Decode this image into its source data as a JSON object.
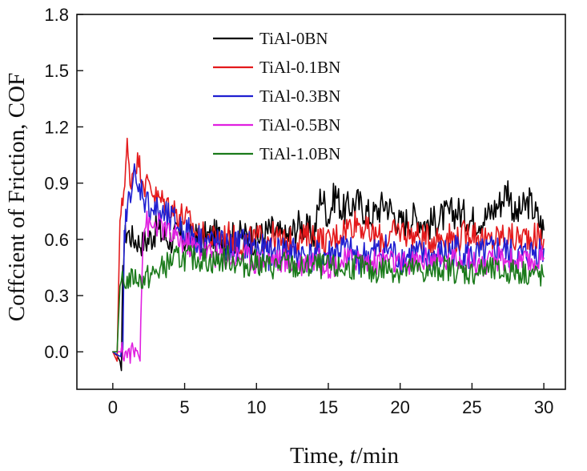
{
  "chart_data": {
    "type": "line",
    "title": "",
    "xlabel_prefix": "Time, ",
    "xlabel_var": "t",
    "xlabel_suffix": "/min",
    "ylabel": "Coffcient of Friction, COF",
    "xlim": [
      -2.5,
      31.5
    ],
    "ylim": [
      -0.2,
      1.8
    ],
    "xticks": [
      0,
      5,
      10,
      15,
      20,
      25,
      30
    ],
    "yticks": [
      0.0,
      0.3,
      0.6,
      0.9,
      1.2,
      1.5,
      1.8
    ],
    "xtick_labels": [
      "0",
      "5",
      "10",
      "15",
      "20",
      "25",
      "30"
    ],
    "ytick_labels": [
      "0.0",
      "0.3",
      "0.6",
      "0.9",
      "1.2",
      "1.5",
      "1.8"
    ],
    "grid": false,
    "legend_position": "top-center",
    "series": [
      {
        "name": "TiAl-0BN",
        "color": "#000000",
        "x": [
          0,
          0.3,
          0.5,
          0.6,
          0.7,
          0.8,
          1.0,
          1.2,
          1.5,
          2,
          2.5,
          3,
          3.5,
          4,
          4.5,
          5,
          6,
          7,
          8,
          9,
          10,
          11,
          12,
          13,
          14,
          14.5,
          15,
          15.5,
          16,
          17,
          18,
          19,
          20,
          21,
          22,
          23,
          24,
          25,
          26,
          27,
          27.5,
          28,
          29,
          30
        ],
        "y": [
          0.0,
          -0.02,
          -0.05,
          -0.1,
          0.4,
          0.6,
          0.65,
          0.62,
          0.6,
          0.58,
          0.6,
          0.65,
          0.62,
          0.6,
          0.62,
          0.6,
          0.6,
          0.62,
          0.6,
          0.62,
          0.6,
          0.65,
          0.6,
          0.68,
          0.62,
          0.85,
          0.72,
          0.85,
          0.75,
          0.8,
          0.72,
          0.8,
          0.68,
          0.72,
          0.68,
          0.72,
          0.75,
          0.7,
          0.72,
          0.8,
          0.88,
          0.72,
          0.8,
          0.65
        ]
      },
      {
        "name": "TiAl-0.1BN",
        "color": "#e41a1c",
        "x": [
          0,
          0.3,
          0.5,
          0.7,
          0.9,
          1.0,
          1.2,
          1.5,
          1.8,
          2.0,
          2.3,
          2.6,
          3.0,
          3.5,
          4,
          4.5,
          5,
          6,
          7,
          8,
          9,
          10,
          11,
          12,
          13,
          14,
          15,
          16,
          17,
          18,
          19,
          20,
          21,
          22,
          23,
          24,
          25,
          26,
          27,
          28,
          29,
          30
        ],
        "y": [
          0.0,
          -0.05,
          0.7,
          0.8,
          1.0,
          1.1,
          0.9,
          1.0,
          1.02,
          0.95,
          0.88,
          0.9,
          0.82,
          0.8,
          0.78,
          0.74,
          0.72,
          0.62,
          0.6,
          0.62,
          0.58,
          0.6,
          0.62,
          0.58,
          0.6,
          0.62,
          0.58,
          0.65,
          0.7,
          0.62,
          0.6,
          0.65,
          0.62,
          0.6,
          0.62,
          0.6,
          0.65,
          0.58,
          0.62,
          0.6,
          0.62,
          0.6
        ]
      },
      {
        "name": "TiAl-0.3BN",
        "color": "#1f1fd1",
        "x": [
          0,
          0.4,
          0.7,
          0.8,
          0.9,
          1.1,
          1.3,
          1.5,
          1.7,
          2.0,
          2.3,
          2.6,
          3.0,
          3.5,
          4,
          4.5,
          5,
          6,
          7,
          8,
          9,
          10,
          11,
          12,
          13,
          14,
          15,
          16,
          17,
          18,
          19,
          20,
          21,
          22,
          23,
          24,
          25,
          26,
          27,
          28,
          29,
          30
        ],
        "y": [
          0.0,
          -0.02,
          -0.03,
          0.6,
          0.7,
          0.8,
          0.9,
          0.95,
          0.85,
          0.88,
          0.8,
          0.78,
          0.75,
          0.72,
          0.7,
          0.68,
          0.65,
          0.6,
          0.58,
          0.55,
          0.58,
          0.55,
          0.52,
          0.55,
          0.52,
          0.5,
          0.52,
          0.55,
          0.5,
          0.52,
          0.55,
          0.5,
          0.52,
          0.5,
          0.52,
          0.55,
          0.5,
          0.52,
          0.55,
          0.5,
          0.52,
          0.55
        ]
      },
      {
        "name": "TiAl-0.5BN",
        "color": "#e020e0",
        "x": [
          0,
          0.5,
          1.0,
          1.5,
          1.9,
          2.0,
          2.1,
          2.3,
          2.6,
          3.0,
          3.5,
          4,
          4.5,
          5,
          6,
          7,
          8,
          9,
          10,
          11,
          12,
          13,
          14,
          15,
          16,
          17,
          18,
          19,
          20,
          21,
          22,
          23,
          24,
          25,
          26,
          27,
          28,
          29,
          30
        ],
        "y": [
          0.0,
          0.0,
          -0.01,
          0.0,
          0.0,
          0.35,
          0.6,
          0.7,
          0.65,
          0.68,
          0.66,
          0.62,
          0.6,
          0.58,
          0.55,
          0.52,
          0.5,
          0.52,
          0.48,
          0.5,
          0.48,
          0.47,
          0.5,
          0.46,
          0.48,
          0.5,
          0.47,
          0.5,
          0.46,
          0.48,
          0.5,
          0.47,
          0.5,
          0.48,
          0.46,
          0.5,
          0.48,
          0.47,
          0.5
        ]
      },
      {
        "name": "TiAl-1.0BN",
        "color": "#1a7a1a",
        "x": [
          0,
          0.3,
          0.5,
          0.6,
          0.8,
          1.0,
          1.5,
          2.0,
          2.5,
          3.0,
          3.5,
          4,
          4.5,
          5,
          6,
          7,
          8,
          9,
          10,
          11,
          12,
          13,
          14,
          15,
          16,
          17,
          18,
          19,
          20,
          21,
          22,
          23,
          24,
          25,
          26,
          27,
          28,
          29,
          30
        ],
        "y": [
          0.0,
          0.0,
          0.35,
          0.38,
          0.36,
          0.38,
          0.4,
          0.38,
          0.4,
          0.42,
          0.45,
          0.48,
          0.5,
          0.5,
          0.5,
          0.48,
          0.5,
          0.46,
          0.48,
          0.45,
          0.47,
          0.44,
          0.46,
          0.45,
          0.44,
          0.46,
          0.42,
          0.45,
          0.43,
          0.44,
          0.42,
          0.45,
          0.43,
          0.42,
          0.44,
          0.42,
          0.43,
          0.42,
          0.4
        ]
      }
    ]
  }
}
